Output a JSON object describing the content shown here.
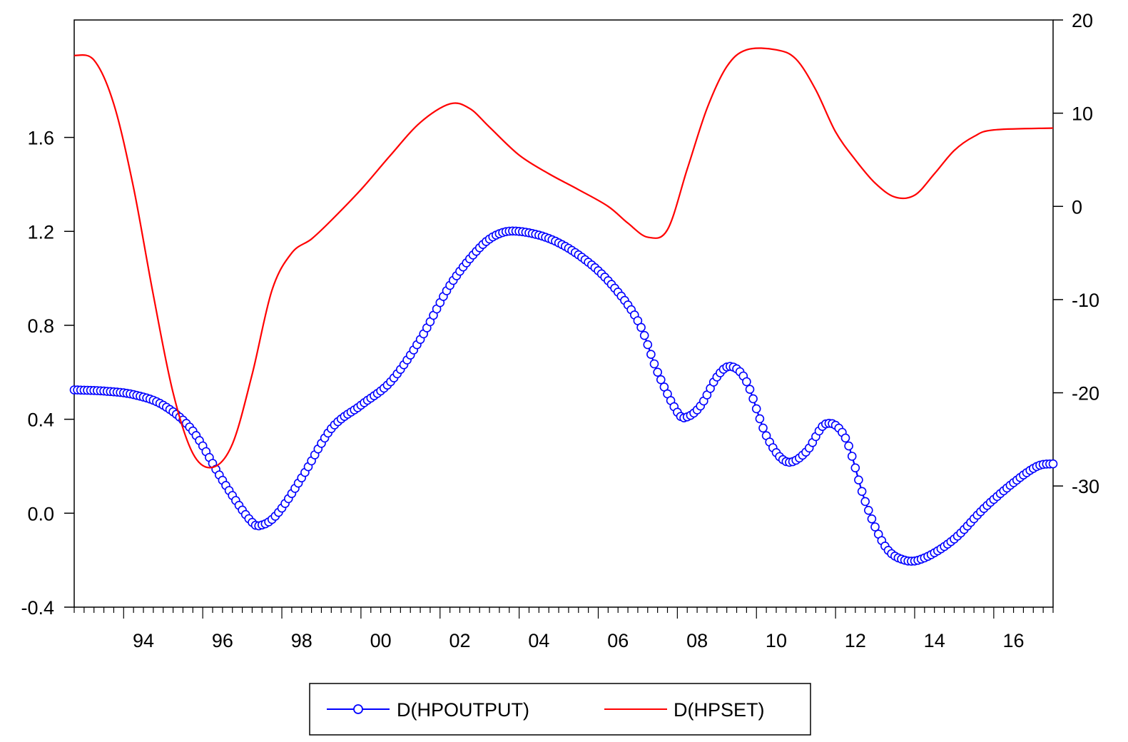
{
  "chart_data": {
    "type": "line",
    "x_range": [
      1992.75,
      2017.5
    ],
    "x_tick_labels": [
      {
        "year": 1994,
        "label": "94"
      },
      {
        "year": 1996,
        "label": "96"
      },
      {
        "year": 1998,
        "label": "98"
      },
      {
        "year": 2000,
        "label": "00"
      },
      {
        "year": 2002,
        "label": "02"
      },
      {
        "year": 2004,
        "label": "04"
      },
      {
        "year": 2006,
        "label": "06"
      },
      {
        "year": 2008,
        "label": "08"
      },
      {
        "year": 2010,
        "label": "10"
      },
      {
        "year": 2012,
        "label": "12"
      },
      {
        "year": 2014,
        "label": "14"
      },
      {
        "year": 2016,
        "label": "16"
      }
    ],
    "y_left": {
      "range": [
        -0.4,
        2.1
      ],
      "ticks": [
        -0.4,
        0.0,
        0.4,
        0.8,
        1.2,
        1.6
      ],
      "tick_labels": [
        "-0.4",
        "0.0",
        "0.4",
        "0.8",
        "1.2",
        "1.6"
      ]
    },
    "y_right": {
      "range": [
        -43,
        20
      ],
      "ticks": [
        -30,
        -20,
        -10,
        0,
        10,
        20
      ],
      "tick_labels": [
        "-30",
        "-20",
        "-10",
        "0",
        "10",
        "20"
      ]
    },
    "grid": false,
    "legend_position": "bottom-center",
    "series": [
      {
        "name": "D(HPOUTPUT)",
        "axis": "left",
        "color": "#0000ff",
        "marker": "circle",
        "points": [
          [
            1992.75,
            0.525
          ],
          [
            1993.5,
            0.52
          ],
          [
            1994.25,
            0.505
          ],
          [
            1995.0,
            0.46
          ],
          [
            1995.75,
            0.35
          ],
          [
            1996.5,
            0.14
          ],
          [
            1997.2,
            -0.03
          ],
          [
            1997.5,
            -0.05
          ],
          [
            1997.9,
            0.0
          ],
          [
            1998.5,
            0.15
          ],
          [
            1999.25,
            0.36
          ],
          [
            2000.0,
            0.46
          ],
          [
            2000.75,
            0.56
          ],
          [
            2001.5,
            0.74
          ],
          [
            2002.25,
            0.97
          ],
          [
            2003.0,
            1.13
          ],
          [
            2003.5,
            1.19
          ],
          [
            2004.0,
            1.2
          ],
          [
            2004.75,
            1.17
          ],
          [
            2005.5,
            1.1
          ],
          [
            2006.25,
            0.99
          ],
          [
            2007.0,
            0.82
          ],
          [
            2007.5,
            0.6
          ],
          [
            2008.0,
            0.43
          ],
          [
            2008.25,
            0.41
          ],
          [
            2008.6,
            0.46
          ],
          [
            2009.0,
            0.58
          ],
          [
            2009.35,
            0.625
          ],
          [
            2009.75,
            0.56
          ],
          [
            2010.25,
            0.33
          ],
          [
            2010.75,
            0.22
          ],
          [
            2011.25,
            0.26
          ],
          [
            2011.75,
            0.38
          ],
          [
            2012.25,
            0.32
          ],
          [
            2012.75,
            0.05
          ],
          [
            2013.25,
            -0.14
          ],
          [
            2013.75,
            -0.2
          ],
          [
            2014.25,
            -0.19
          ],
          [
            2015.0,
            -0.11
          ],
          [
            2015.75,
            0.02
          ],
          [
            2016.5,
            0.13
          ],
          [
            2017.1,
            0.2
          ],
          [
            2017.5,
            0.21
          ]
        ]
      },
      {
        "name": "D(HPSET)",
        "axis": "right",
        "color": "#ff0000",
        "marker": "none",
        "points": [
          [
            1992.75,
            16.2
          ],
          [
            1993.25,
            15.7
          ],
          [
            1993.75,
            11.0
          ],
          [
            1994.25,
            2.0
          ],
          [
            1994.75,
            -9.5
          ],
          [
            1995.25,
            -20.0
          ],
          [
            1995.75,
            -26.5
          ],
          [
            1996.25,
            -28.0
          ],
          [
            1996.75,
            -25.5
          ],
          [
            1997.25,
            -18.0
          ],
          [
            1997.75,
            -9.0
          ],
          [
            1998.25,
            -5.0
          ],
          [
            1998.75,
            -3.5
          ],
          [
            1999.25,
            -1.5
          ],
          [
            2000.0,
            1.8
          ],
          [
            2000.75,
            5.5
          ],
          [
            2001.5,
            9.0
          ],
          [
            2002.25,
            11.0
          ],
          [
            2002.75,
            10.5
          ],
          [
            2003.25,
            8.5
          ],
          [
            2004.0,
            5.5
          ],
          [
            2004.75,
            3.5
          ],
          [
            2005.5,
            1.8
          ],
          [
            2006.25,
            0.0
          ],
          [
            2006.75,
            -1.8
          ],
          [
            2007.25,
            -3.3
          ],
          [
            2007.75,
            -2.5
          ],
          [
            2008.25,
            4.0
          ],
          [
            2008.75,
            10.5
          ],
          [
            2009.25,
            15.0
          ],
          [
            2009.75,
            16.8
          ],
          [
            2010.5,
            16.8
          ],
          [
            2011.0,
            15.8
          ],
          [
            2011.5,
            12.5
          ],
          [
            2012.0,
            8.0
          ],
          [
            2012.5,
            5.0
          ],
          [
            2013.0,
            2.5
          ],
          [
            2013.5,
            1.0
          ],
          [
            2014.0,
            1.2
          ],
          [
            2014.5,
            3.5
          ],
          [
            2015.0,
            6.0
          ],
          [
            2015.5,
            7.5
          ],
          [
            2016.0,
            8.2
          ],
          [
            2017.5,
            8.4
          ]
        ]
      }
    ]
  }
}
